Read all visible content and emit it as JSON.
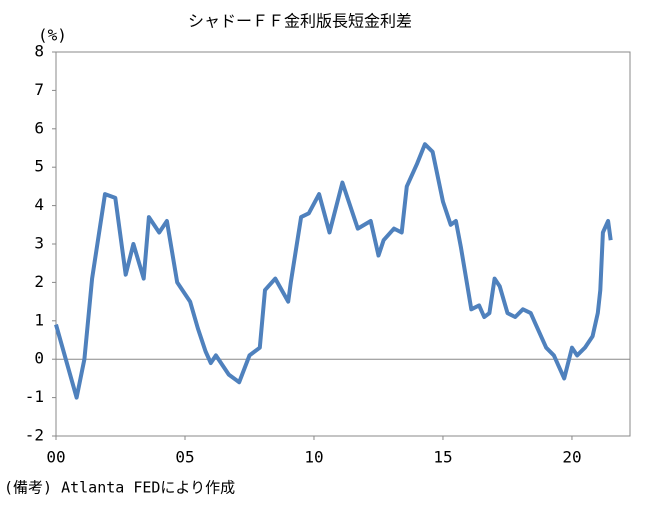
{
  "chart_data": {
    "type": "line",
    "title": "シャドーＦＦ金利版長短金利差",
    "y_label": "(%)",
    "note": "(備考) Atlanta FEDにより作成",
    "x": [
      2000.0,
      2000.8,
      2001.1,
      2001.4,
      2001.9,
      2002.3,
      2002.7,
      2003.0,
      2003.4,
      2003.6,
      2004.0,
      2004.3,
      2004.7,
      2005.2,
      2005.5,
      2005.8,
      2006.0,
      2006.2,
      2006.7,
      2007.1,
      2007.5,
      2007.9,
      2008.1,
      2008.5,
      2009.0,
      2009.1,
      2009.5,
      2009.8,
      2010.2,
      2010.6,
      2011.1,
      2011.3,
      2011.7,
      2012.2,
      2012.5,
      2012.7,
      2013.1,
      2013.4,
      2013.6,
      2014.0,
      2014.3,
      2014.6,
      2015.0,
      2015.3,
      2015.5,
      2015.7,
      2016.1,
      2016.4,
      2016.6,
      2016.8,
      2017.0,
      2017.2,
      2017.5,
      2017.8,
      2018.1,
      2018.4,
      2018.6,
      2019.0,
      2019.3,
      2019.7,
      2020.0,
      2020.2,
      2020.5,
      2020.8,
      2021.0,
      2021.1,
      2021.2,
      2021.4,
      2021.5
    ],
    "series": [
      {
        "name": "シャドーＦＦ金利版長短金利差",
        "color": "#4f81bd",
        "values": [
          0.9,
          -1.0,
          0.0,
          2.1,
          4.3,
          4.2,
          2.2,
          3.0,
          2.1,
          3.7,
          3.3,
          3.6,
          2.0,
          1.5,
          0.8,
          0.2,
          -0.1,
          0.1,
          -0.4,
          -0.6,
          0.1,
          0.3,
          1.8,
          2.1,
          1.5,
          2.0,
          3.7,
          3.8,
          4.3,
          3.3,
          4.6,
          4.2,
          3.4,
          3.6,
          2.7,
          3.1,
          3.4,
          3.3,
          4.5,
          5.1,
          5.6,
          5.4,
          4.1,
          3.5,
          3.6,
          2.9,
          1.3,
          1.4,
          1.1,
          1.2,
          2.1,
          1.9,
          1.2,
          1.1,
          1.3,
          1.2,
          0.9,
          0.3,
          0.1,
          -0.5,
          0.3,
          0.1,
          0.3,
          0.6,
          1.2,
          1.8,
          3.3,
          3.6,
          3.1
        ]
      }
    ],
    "xlim": [
      2000,
      2022.25
    ],
    "xticks": [
      {
        "value": 2000,
        "label": "00"
      },
      {
        "value": 2005,
        "label": "05"
      },
      {
        "value": 2010,
        "label": "10"
      },
      {
        "value": 2015,
        "label": "15"
      },
      {
        "value": 2020,
        "label": "20"
      }
    ],
    "ylim": [
      -2,
      8
    ],
    "yticks": [
      -2,
      -1,
      0,
      1,
      2,
      3,
      4,
      5,
      6,
      7,
      8
    ]
  }
}
